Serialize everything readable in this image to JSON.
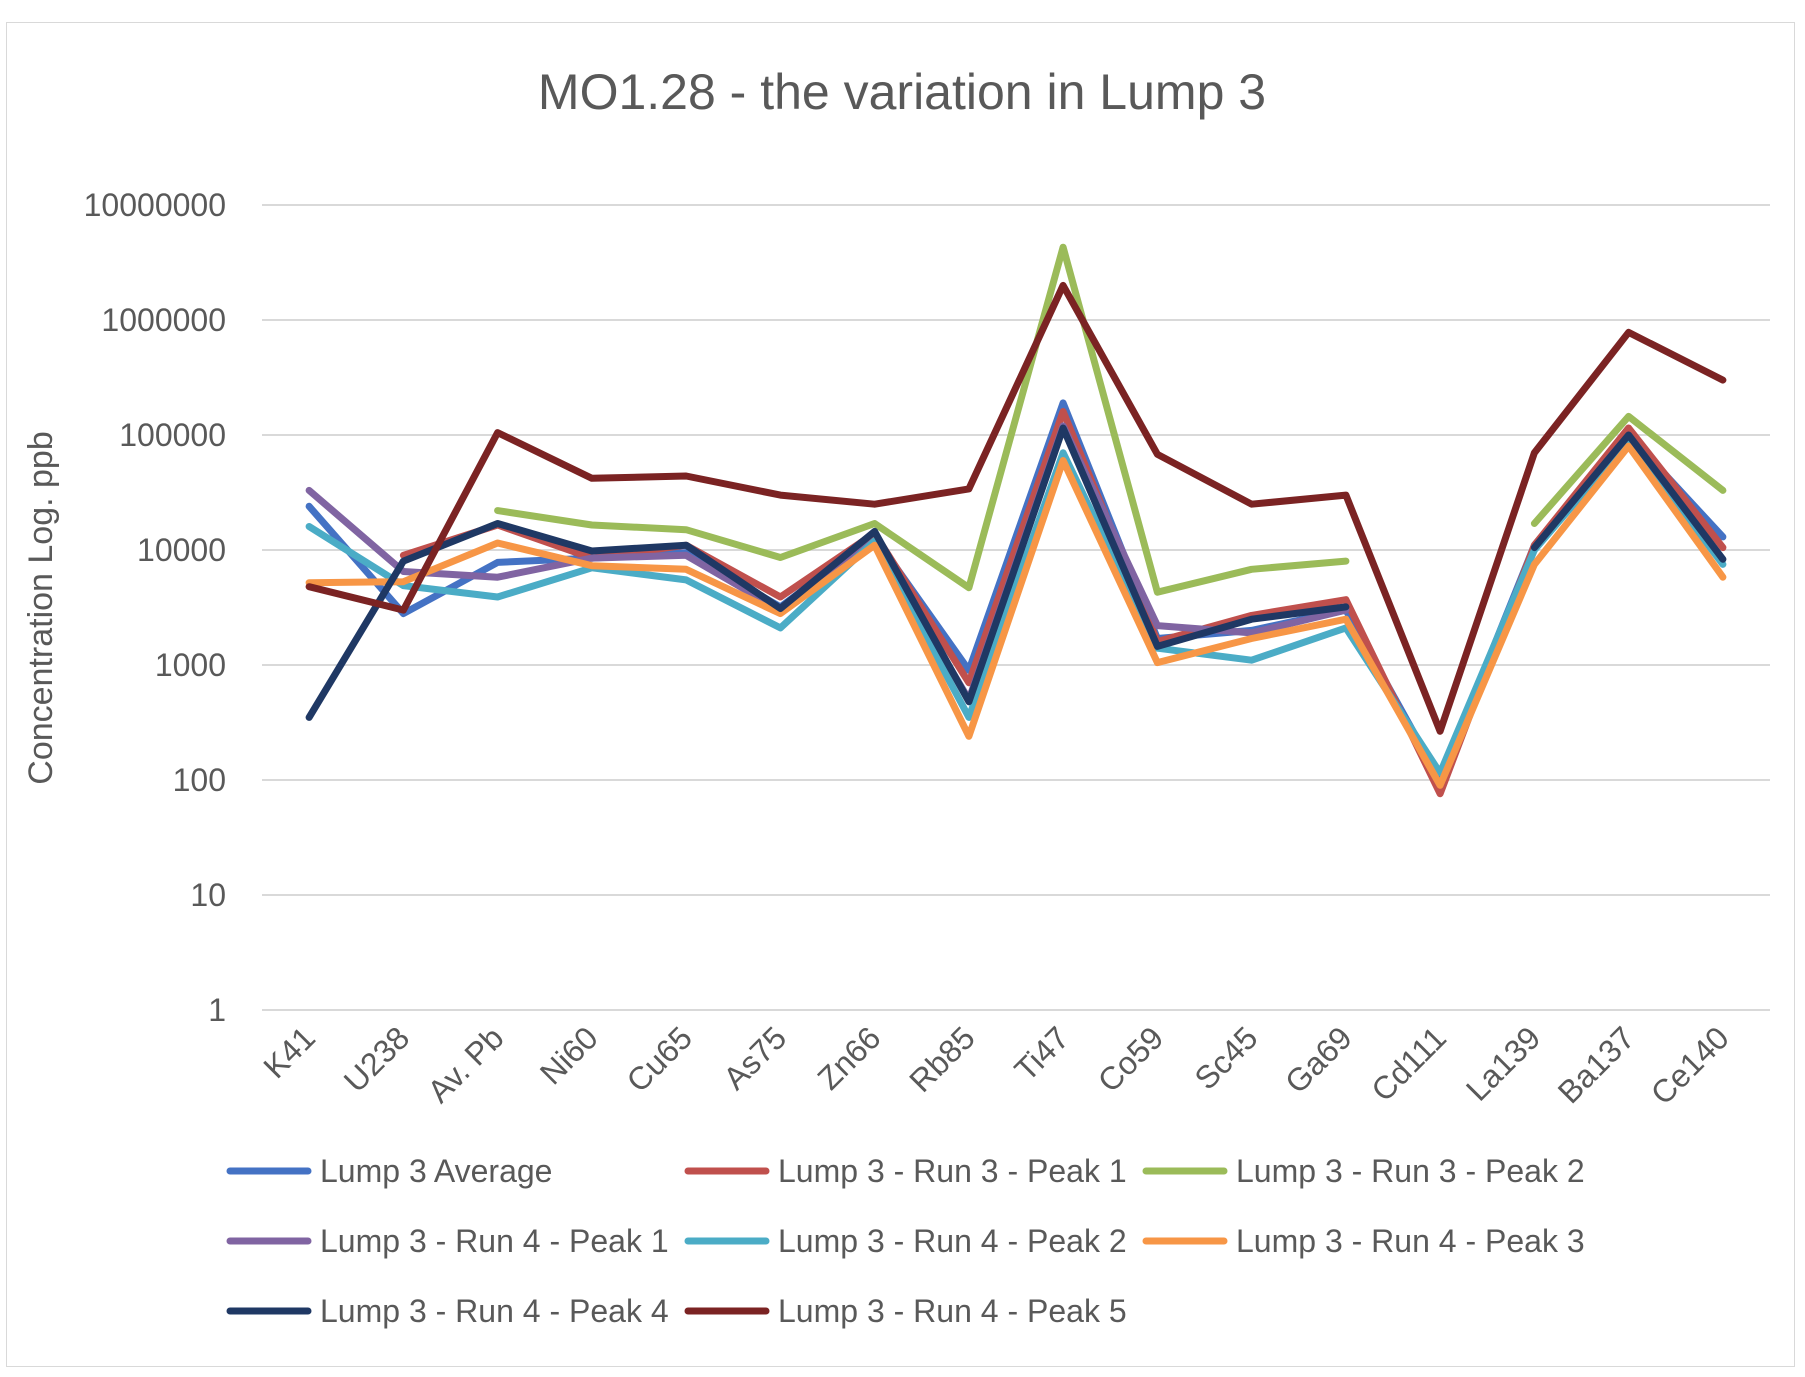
{
  "chart_data": {
    "type": "line",
    "title": "MO1.28 - the variation in Lump 3",
    "xlabel": "",
    "ylabel": "Concentration Log. ppb",
    "yscale": "log",
    "ylim": [
      1,
      10000000
    ],
    "yticks": [
      "1",
      "10",
      "100",
      "1000",
      "10000",
      "100000",
      "1000000",
      "10000000"
    ],
    "grid": "horizontal",
    "legend_position": "bottom",
    "categories": [
      "K41",
      "U238",
      "Av. Pb",
      "Ni60",
      "Cu65",
      "As75",
      "Zn66",
      "Rb85",
      "Ti47",
      "Co59",
      "Sc45",
      "Ga69",
      "Cd111",
      "La139",
      "Ba137",
      "Ce140"
    ],
    "series": [
      {
        "name": "Lump 3 Average",
        "color": "#4472c4",
        "values": [
          24000,
          2800,
          7800,
          8500,
          9500,
          3200,
          13000,
          900,
          190000,
          1700,
          2000,
          3000,
          100,
          11000,
          100000,
          13000
        ]
      },
      {
        "name": "Lump 3 - Run 3 - Peak 1",
        "color": "#c0504d",
        "values": [
          null,
          9000,
          16500,
          8500,
          11000,
          3900,
          14000,
          700,
          160000,
          1600,
          2700,
          3700,
          76,
          11000,
          115000,
          10500
        ]
      },
      {
        "name": "Lump 3 - Run 3 - Peak 2",
        "color": "#9bbb59",
        "values": [
          null,
          null,
          22000,
          16500,
          15000,
          8600,
          17000,
          4700,
          4300000,
          4300,
          6800,
          8000,
          null,
          17000,
          145000,
          33000
        ]
      },
      {
        "name": "Lump 3 - Run 4 - Peak 1",
        "color": "#8064a2",
        "values": [
          33000,
          6500,
          5800,
          8500,
          9000,
          3000,
          12000,
          500,
          120000,
          2200,
          1900,
          3000,
          null,
          null,
          null,
          null
        ]
      },
      {
        "name": "Lump 3 - Run 4 - Peak 2",
        "color": "#4bacc6",
        "values": [
          16000,
          4900,
          3900,
          7000,
          5500,
          2100,
          12000,
          350,
          70000,
          1400,
          1100,
          2100,
          115,
          10000,
          90000,
          7500
        ]
      },
      {
        "name": "Lump 3 - Run 4 - Peak 3",
        "color": "#f79646",
        "values": [
          5200,
          5300,
          11500,
          7300,
          6800,
          2800,
          11000,
          240,
          60000,
          1050,
          1700,
          2500,
          90,
          7500,
          80000,
          5800
        ]
      },
      {
        "name": "Lump 3 - Run 4 - Peak 4",
        "color": "#1f3864",
        "values": [
          350,
          8000,
          17000,
          9800,
          11000,
          3100,
          14500,
          480,
          115000,
          1450,
          2500,
          3200,
          null,
          10500,
          100000,
          8300
        ]
      },
      {
        "name": "Lump 3 - Run 4 - Peak 5",
        "color": "#7b2323",
        "values": [
          4800,
          3000,
          105000,
          42000,
          44000,
          30000,
          25000,
          34000,
          2000000,
          68000,
          25000,
          30000,
          265,
          70000,
          780000,
          300000
        ]
      }
    ]
  }
}
